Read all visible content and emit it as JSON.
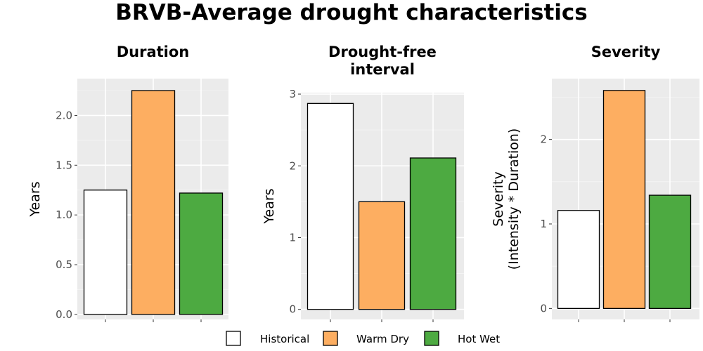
{
  "title": "BRVB-Average drought characteristics",
  "legend": [
    {
      "label": "Historical",
      "color": "#ffffff"
    },
    {
      "label": "Warm Dry",
      "color": "#fdae61"
    },
    {
      "label": "Hot Wet",
      "color": "#4daa41"
    }
  ],
  "chart_data": [
    {
      "type": "bar",
      "title": "Duration",
      "ylabel": "Years",
      "categories": [
        "Historical",
        "Warm Dry",
        "Hot Wet"
      ],
      "values": [
        1.25,
        2.25,
        1.22
      ],
      "ylim": [
        -0.05,
        2.37
      ],
      "yticks": [
        0.0,
        0.5,
        1.0,
        1.5,
        2.0
      ],
      "tick_labels": [
        "0.0",
        "0.5",
        "1.0",
        "1.5",
        "2.0"
      ],
      "grid": true
    },
    {
      "type": "bar",
      "title": "Drought-free interval",
      "title_lines": [
        "Drought-free",
        "interval"
      ],
      "ylabel": "Years",
      "categories": [
        "Historical",
        "Warm Dry",
        "Hot Wet"
      ],
      "values": [
        2.87,
        1.5,
        2.11
      ],
      "ylim": [
        -0.14,
        3.02
      ],
      "yticks": [
        0,
        1,
        2,
        3
      ],
      "tick_labels": [
        "0",
        "1",
        "2",
        "3"
      ],
      "grid": true
    },
    {
      "type": "bar",
      "title": "Severity",
      "ylabel": "Severity\n(Intensity * Duration)",
      "ylabel_lines": [
        "Severity",
        "(Intensity * Duration)"
      ],
      "categories": [
        "Historical",
        "Warm Dry",
        "Hot Wet"
      ],
      "values": [
        1.16,
        2.58,
        1.34
      ],
      "ylim": [
        -0.13,
        2.72
      ],
      "yticks": [
        0,
        1,
        2
      ],
      "tick_labels": [
        "0",
        "1",
        "2"
      ],
      "grid": true
    }
  ]
}
